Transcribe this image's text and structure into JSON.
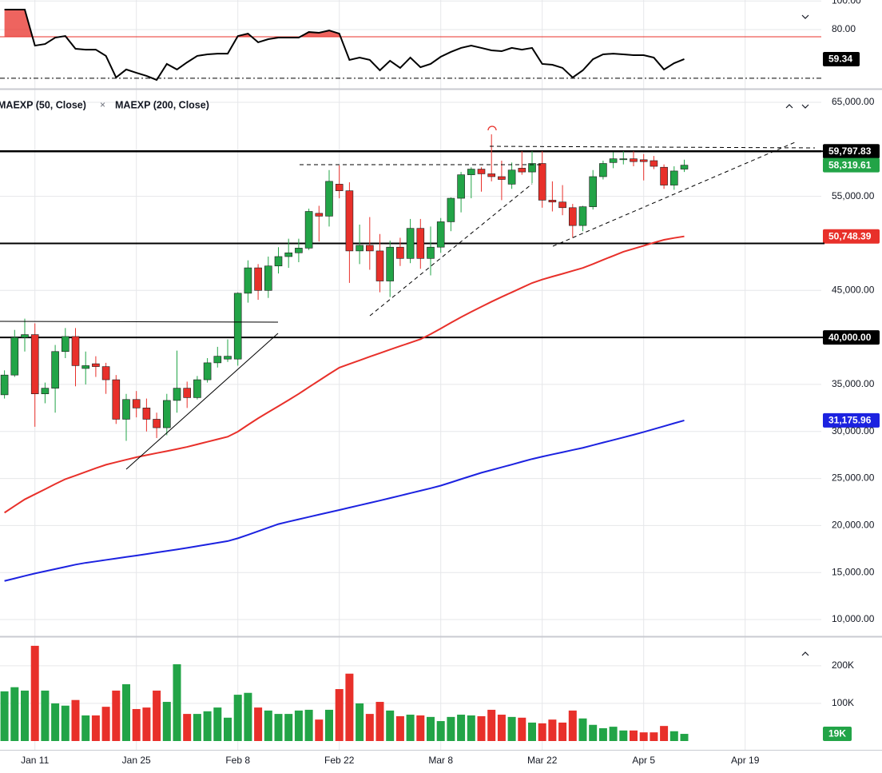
{
  "chart_data": {
    "type": "candlestick",
    "categories": [
      null,
      null,
      null,
      "Jan 11",
      null,
      null,
      null,
      null,
      null,
      null,
      null,
      null,
      null,
      "Jan 25",
      null,
      null,
      null,
      null,
      null,
      null,
      null,
      null,
      null,
      "Feb 8",
      null,
      null,
      null,
      null,
      null,
      null,
      null,
      null,
      null,
      "Feb 22",
      null,
      null,
      null,
      null,
      null,
      null,
      null,
      null,
      null,
      "Mar 8",
      null,
      null,
      null,
      null,
      null,
      null,
      null,
      null,
      null,
      "Mar 22",
      null,
      null,
      null,
      null,
      null,
      null,
      null,
      null,
      null,
      "Apr 5",
      null,
      null,
      null,
      null,
      null,
      null,
      null,
      null,
      null,
      "Apr 19"
    ],
    "open": [
      33900,
      36000,
      40000,
      40300,
      34000,
      34600,
      38500,
      40100,
      36700,
      37200,
      36900,
      35500,
      31300,
      33400,
      32500,
      31300,
      30400,
      33300,
      34600,
      33600,
      35500,
      37300,
      37700,
      37700,
      44700,
      47400,
      45000,
      47600,
      48600,
      49000,
      49500,
      53200,
      52900,
      56300,
      55600,
      49200,
      49800,
      49200,
      46000,
      49600,
      48400,
      51600,
      48400,
      49600,
      52300,
      54800,
      57300,
      57900,
      57400,
      57100,
      56300,
      58000,
      57600,
      58500,
      54600,
      54400,
      53800,
      51900,
      53900,
      57100,
      58600,
      58900,
      59000,
      58900,
      58800,
      58100,
      56200,
      57900,
      null,
      null,
      null,
      null,
      null,
      null
    ],
    "high": [
      36500,
      40800,
      42000,
      41500,
      35200,
      39200,
      41000,
      41000,
      38500,
      38000,
      37300,
      36000,
      34000,
      34300,
      33500,
      32000,
      34000,
      38600,
      35300,
      35900,
      37800,
      39000,
      39800,
      44800,
      48200,
      47800,
      48600,
      49600,
      50500,
      50500,
      53700,
      54000,
      57800,
      58300,
      56500,
      52000,
      52800,
      51000,
      50300,
      50600,
      52600,
      52600,
      51800,
      52700,
      54900,
      57600,
      58100,
      58100,
      61600,
      58800,
      58600,
      59800,
      59800,
      59800,
      56600,
      56200,
      54200,
      54000,
      57800,
      58800,
      59700,
      59800,
      59800,
      59500,
      59300,
      58400,
      58200,
      58900,
      null,
      null,
      null,
      null,
      null,
      null
    ],
    "low": [
      33500,
      35800,
      38500,
      30500,
      33000,
      32000,
      37800,
      34800,
      35000,
      35800,
      34000,
      30800,
      29000,
      31500,
      30000,
      29300,
      29600,
      32000,
      32500,
      33400,
      35200,
      36800,
      37400,
      37000,
      43700,
      44000,
      44200,
      46800,
      47400,
      48000,
      49300,
      50200,
      51800,
      54800,
      45800,
      47800,
      47200,
      44800,
      44300,
      47600,
      47900,
      47300,
      46600,
      49000,
      51300,
      53300,
      54800,
      55500,
      56600,
      54600,
      55800,
      57300,
      56400,
      53800,
      53400,
      53000,
      50600,
      51300,
      53600,
      56800,
      58000,
      58400,
      58200,
      56700,
      57900,
      55800,
      55700,
      57600,
      null,
      null,
      null,
      null,
      null,
      null
    ],
    "close": [
      36000,
      40000,
      40300,
      34000,
      34600,
      38500,
      40100,
      37000,
      37000,
      36900,
      35500,
      31300,
      33400,
      32500,
      31300,
      30400,
      33300,
      34600,
      33600,
      35500,
      37300,
      38000,
      38000,
      44700,
      47400,
      45000,
      47600,
      48600,
      49000,
      49500,
      53400,
      52900,
      56600,
      55600,
      49200,
      49800,
      49200,
      46000,
      49600,
      48400,
      51600,
      48400,
      49600,
      52300,
      54800,
      57300,
      57900,
      57400,
      57100,
      56800,
      57800,
      57600,
      58500,
      54600,
      54400,
      53800,
      51900,
      53900,
      57100,
      58500,
      59000,
      59000,
      58700,
      58700,
      58200,
      56200,
      57700,
      58319.61,
      null,
      null,
      null,
      null,
      null,
      null
    ],
    "close_last_label": "58,319.61",
    "up_color": "#22a447",
    "down_color": "#e8302a",
    "series": [
      {
        "name": "MAEXP (50, Close)",
        "color": "#e8302a",
        "last_label": "50,748.39",
        "values": [
          21360,
          22080,
          22780,
          23320,
          23860,
          24410,
          24930,
          25310,
          25700,
          26090,
          26460,
          26730,
          27000,
          27260,
          27480,
          27700,
          27910,
          28130,
          28360,
          28630,
          28900,
          29170,
          29440,
          29980,
          30700,
          31400,
          32050,
          32690,
          33340,
          34000,
          34710,
          35410,
          36110,
          36790,
          37180,
          37560,
          37950,
          38330,
          38710,
          39080,
          39440,
          39810,
          40350,
          40950,
          41560,
          42160,
          42720,
          43260,
          43800,
          44310,
          44800,
          45300,
          45790,
          46160,
          46470,
          46770,
          47080,
          47390,
          47810,
          48250,
          48680,
          49110,
          49430,
          49750,
          50080,
          50380,
          50580,
          50748.39,
          null,
          null,
          null,
          null,
          null,
          null
        ]
      },
      {
        "name": "MAEXP (200, Close)",
        "color": "#1c22e0",
        "last_label": "31,175.96",
        "values": [
          14100,
          14370,
          14640,
          14900,
          15130,
          15370,
          15600,
          15840,
          16030,
          16180,
          16340,
          16490,
          16650,
          16800,
          16960,
          17130,
          17290,
          17450,
          17620,
          17800,
          17980,
          18160,
          18340,
          18640,
          19010,
          19390,
          19770,
          20150,
          20410,
          20660,
          20910,
          21160,
          21400,
          21650,
          21900,
          22150,
          22400,
          22650,
          22910,
          23170,
          23440,
          23700,
          23960,
          24240,
          24580,
          24930,
          25270,
          25610,
          25900,
          26190,
          26480,
          26780,
          27070,
          27320,
          27560,
          27790,
          28030,
          28260,
          28540,
          28820,
          29090,
          29370,
          29650,
          29940,
          30250,
          30560,
          30870,
          31175.96,
          null,
          null,
          null,
          null,
          null,
          null
        ]
      }
    ],
    "ylim": [
      8300,
      66280
    ],
    "yticks": [
      {
        "value": 10000,
        "label": "10,000.00"
      },
      {
        "value": 15000,
        "label": "15,000.00"
      },
      {
        "value": 20000,
        "label": "20,000.00"
      },
      {
        "value": 25000,
        "label": "25,000.00"
      },
      {
        "value": 30000,
        "label": "30,000.00"
      },
      {
        "value": 35000,
        "label": "35,000.00"
      },
      {
        "value": 45000,
        "label": "45,000.00"
      },
      {
        "value": 55000,
        "label": "55,000.00"
      },
      {
        "value": 65000,
        "label": "65,000.00"
      }
    ],
    "levels": [
      {
        "value": 59797.83,
        "label": "59,797.83"
      },
      {
        "value": 50000
      },
      {
        "value": 40000,
        "label": "40,000.00"
      }
    ],
    "grid": true,
    "oscillator": {
      "values": [
        94.0,
        94.0,
        94.0,
        68.8,
        69.9,
        74.4,
        75.5,
        66.6,
        66.0,
        66.0,
        61.6,
        46.5,
        52.1,
        49.8,
        47.6,
        44.8,
        56.0,
        52.1,
        57.1,
        61.6,
        62.7,
        63.2,
        63.2,
        75.5,
        77.2,
        71.1,
        73.3,
        74.4,
        74.4,
        74.4,
        78.3,
        77.8,
        79.4,
        77.2,
        58.8,
        60.4,
        58.8,
        51.5,
        58.2,
        53.2,
        60.4,
        53.7,
        56.0,
        61.0,
        64.4,
        67.2,
        68.8,
        67.2,
        65.5,
        64.9,
        67.2,
        66.0,
        67.2,
        56.0,
        55.4,
        53.2,
        46.5,
        51.5,
        59.3,
        62.7,
        63.2,
        62.7,
        62.1,
        62.1,
        60.4,
        52.1,
        56.5,
        59.34,
        null,
        null,
        null,
        null,
        null,
        null
      ],
      "color": "#000000",
      "ylim": [
        39.2,
        100.7
      ],
      "yticks": [
        {
          "value": 100,
          "label": "100.00"
        },
        {
          "value": 80,
          "label": "80.00"
        }
      ],
      "upper_level": 75,
      "lower_level": 46,
      "upper_color": "#e8302a"
    },
    "volume": {
      "values": [
        132000,
        143000,
        134000,
        253000,
        134000,
        100000,
        94000,
        109000,
        68000,
        68000,
        91000,
        134000,
        151000,
        85000,
        89000,
        134000,
        104000,
        204000,
        72000,
        72000,
        79000,
        89000,
        62000,
        123000,
        128000,
        89000,
        81000,
        72000,
        72000,
        81000,
        83000,
        57000,
        83000,
        138000,
        179000,
        100000,
        72000,
        104000,
        81000,
        66000,
        70000,
        68000,
        64000,
        53000,
        64000,
        70000,
        68000,
        66000,
        83000,
        70000,
        64000,
        62000,
        49000,
        47000,
        57000,
        49000,
        81000,
        60000,
        43000,
        34000,
        38000,
        28000,
        28000,
        23000,
        23000,
        40000,
        26000,
        19000,
        null,
        null,
        null,
        null,
        null,
        null
      ],
      "last_label": "19K",
      "ylim": [
        -17000,
        274000
      ],
      "yticks": [
        {
          "value": 100000,
          "label": "100K"
        },
        {
          "value": 200000,
          "label": "200K"
        }
      ]
    }
  }
}
